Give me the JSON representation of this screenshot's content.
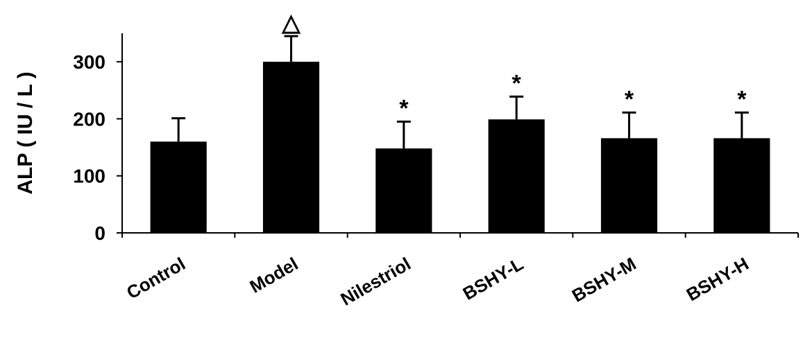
{
  "chart_data": {
    "type": "bar",
    "y_label": "ALP ( IU / L )",
    "categories": [
      "Control",
      "Model",
      "Nilestriol",
      "BSHY-L",
      "BSHY-M",
      "BSHY-H"
    ],
    "values": [
      160,
      300,
      148,
      199,
      166,
      166
    ],
    "errors": [
      41,
      45,
      47,
      40,
      45,
      45
    ],
    "annotations": [
      null,
      "△",
      "*",
      "*",
      "*",
      "*"
    ],
    "color": "#000000",
    "ylim": [
      0,
      350
    ],
    "yticks": [
      0,
      100,
      200,
      300
    ],
    "grid": false
  }
}
